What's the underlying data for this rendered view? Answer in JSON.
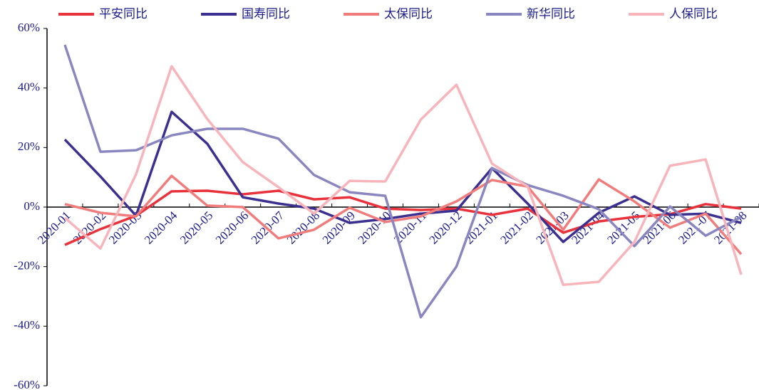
{
  "chart_data": {
    "type": "line",
    "categories": [
      "2020-01",
      "2020-02",
      "2020-03",
      "2020-04",
      "2020-05",
      "2020-06",
      "2020-07",
      "2020-08",
      "2020-09",
      "2020-10",
      "2020-11",
      "2020-12",
      "2021-01",
      "2021-02",
      "2021-03",
      "2021-04",
      "2021-05",
      "2021-06",
      "2021-07",
      "2021-08"
    ],
    "series": [
      {
        "name": "平安同比",
        "color": "#e8323c",
        "values": [
          -12.7,
          -7.4,
          -2.9,
          5.3,
          5.5,
          4.3,
          5.5,
          2.6,
          3.3,
          -0.5,
          -1,
          -0.5,
          -2.6,
          -0.5,
          -8.6,
          -4.8,
          -3.3,
          -2.4,
          1,
          -0.5
        ]
      },
      {
        "name": "国寿同比",
        "color": "#3b2f8f",
        "values": [
          22.7,
          10.3,
          -2.9,
          32,
          21.3,
          3.3,
          1.2,
          -0.5,
          -5.3,
          -4,
          -2.2,
          -1.2,
          13.1,
          1.2,
          -11.7,
          -1.9,
          3.6,
          -2.6,
          -2.2,
          -5.3
        ]
      },
      {
        "name": "太保同比",
        "color": "#f07c7c",
        "values": [
          1,
          -1.9,
          -3.1,
          10.5,
          0.5,
          0,
          -10.5,
          -7.6,
          -0.2,
          -5,
          -3.1,
          1.9,
          9.1,
          6.9,
          -7.6,
          9.3,
          1.9,
          -6.9,
          -2.2,
          -15.8
        ]
      },
      {
        "name": "新华同比",
        "color": "#8a86c0",
        "values": [
          54.5,
          18.6,
          19.1,
          24.1,
          26.3,
          26.3,
          23,
          10.8,
          5,
          3.8,
          -37,
          -20,
          13.1,
          7.4,
          3.8,
          -0.7,
          -13.1,
          0.2,
          -9.6,
          -3.3
        ]
      },
      {
        "name": "人保同比",
        "color": "#f7b4bb",
        "values": [
          -3.6,
          -13.9,
          11,
          47.3,
          29.6,
          15.1,
          6.7,
          -2.2,
          8.8,
          8.6,
          29.4,
          41.1,
          14.6,
          6.9,
          -26.1,
          -25.1,
          -11.7,
          13.9,
          16,
          -22.7
        ]
      }
    ],
    "ylim": [
      -60,
      60
    ],
    "yticks": [
      {
        "value": -60,
        "label": "-60%"
      },
      {
        "value": -40,
        "label": "-40%"
      },
      {
        "value": -20,
        "label": "-20%"
      },
      {
        "value": 0,
        "label": "0%"
      },
      {
        "value": 20,
        "label": "20%"
      },
      {
        "value": 40,
        "label": "40%"
      },
      {
        "value": 60,
        "label": "60%"
      }
    ],
    "legend": "top"
  }
}
